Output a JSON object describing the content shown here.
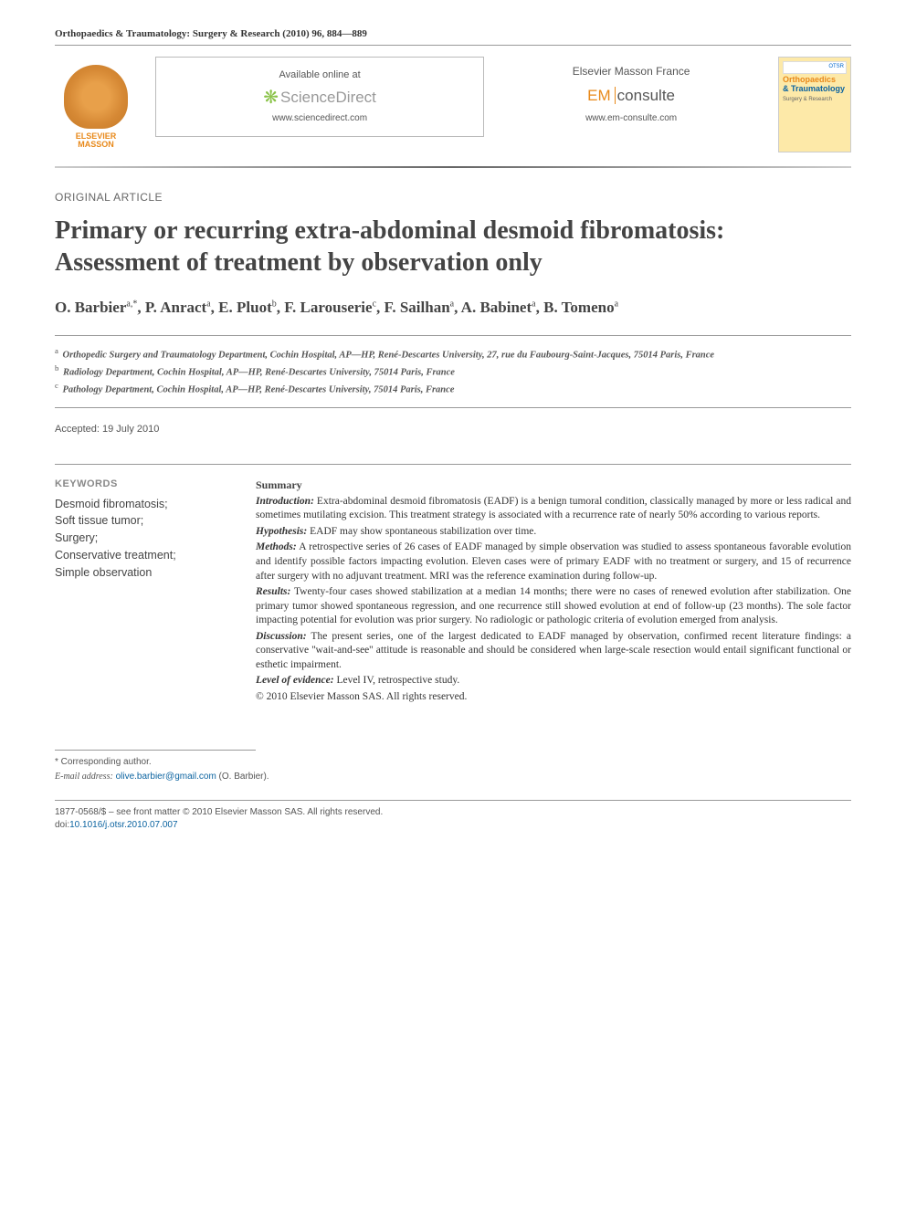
{
  "citation": "Orthopaedics & Traumatology: Surgery & Research (2010) 96, 884—889",
  "publisher_name_line1": "ELSEVIER",
  "publisher_name_line2": "MASSON",
  "available_at": "Available online at",
  "sciencedirect": "ScienceDirect",
  "sd_url": "www.sciencedirect.com",
  "emf_label": "Elsevier Masson France",
  "em_prefix": "EM",
  "em_text": "consulte",
  "em_url": "www.em-consulte.com",
  "cover_otsr": "OTSR",
  "cover_line1": "Orthopaedics",
  "cover_amp": "&",
  "cover_line2": "Traumatology",
  "cover_sub": "Surgery & Research",
  "article_type": "ORIGINAL ARTICLE",
  "title": "Primary or recurring extra-abdominal desmoid fibromatosis: Assessment of treatment by observation only",
  "authors_html": "O. Barbier<sup>a,*</sup>, P. Anract<sup>a</sup>, E. Pluot<sup>b</sup>, F. Larouserie<sup>c</sup>, F. Sailhan<sup>a</sup>, A. Babinet<sup>a</sup>, B. Tomeno<sup>a</sup>",
  "aff_a": "Orthopedic Surgery and Traumatology Department, Cochin Hospital, AP—HP, René-Descartes University, 27, rue du Faubourg-Saint-Jacques, 75014 Paris, France",
  "aff_b": "Radiology Department, Cochin Hospital, AP—HP, René-Descartes University, 75014 Paris, France",
  "aff_c": "Pathology Department, Cochin Hospital, AP—HP, René-Descartes University, 75014 Paris, France",
  "accepted": "Accepted: 19 July 2010",
  "kw_head": "KEYWORDS",
  "keywords": "Desmoid fibromatosis;\nSoft tissue tumor;\nSurgery;\nConservative treatment;\nSimple observation",
  "summary_head": "Summary",
  "sections": {
    "intro_label": "Introduction:",
    "intro": " Extra-abdominal desmoid fibromatosis (EADF) is a benign tumoral condition, classically managed by more or less radical and sometimes mutilating excision. This treatment strategy is associated with a recurrence rate of nearly 50% according to various reports.",
    "hyp_label": "Hypothesis:",
    "hyp": " EADF may show spontaneous stabilization over time.",
    "meth_label": "Methods:",
    "meth": " A retrospective series of 26 cases of EADF managed by simple observation was studied to assess spontaneous favorable evolution and identify possible factors impacting evolution. Eleven cases were of primary EADF with no treatment or surgery, and 15 of recurrence after surgery with no adjuvant treatment. MRI was the reference examination during follow-up.",
    "res_label": "Results:",
    "res": " Twenty-four cases showed stabilization at a median 14 months; there were no cases of renewed evolution after stabilization. One primary tumor showed spontaneous regression, and one recurrence still showed evolution at end of follow-up (23 months). The sole factor impacting potential for evolution was prior surgery. No radiologic or pathologic criteria of evolution emerged from analysis.",
    "disc_label": "Discussion:",
    "disc": " The present series, one of the largest dedicated to EADF managed by observation, confirmed recent literature findings: a conservative ''wait-and-see'' attitude is reasonable and should be considered when large-scale resection would entail significant functional or esthetic impairment.",
    "loe_label": "Level of evidence:",
    "loe": " Level IV, retrospective study.",
    "copyright": "© 2010 Elsevier Masson SAS. All rights reserved."
  },
  "corr_label": "* Corresponding author.",
  "email_label": "E-mail address:",
  "email": "olive.barbier@gmail.com",
  "email_author": " (O. Barbier).",
  "front_matter": "1877-0568/$ – see front matter © 2010 Elsevier Masson SAS. All rights reserved.",
  "doi_prefix": "doi:",
  "doi": "10.1016/j.otsr.2010.07.007",
  "colors": {
    "orange": "#e8891a",
    "blue": "#0b63a0",
    "text": "#333333",
    "muted": "#666666",
    "rule": "#999999",
    "sd_green": "#8bc34a",
    "cover_bg": "#fde9a8"
  }
}
